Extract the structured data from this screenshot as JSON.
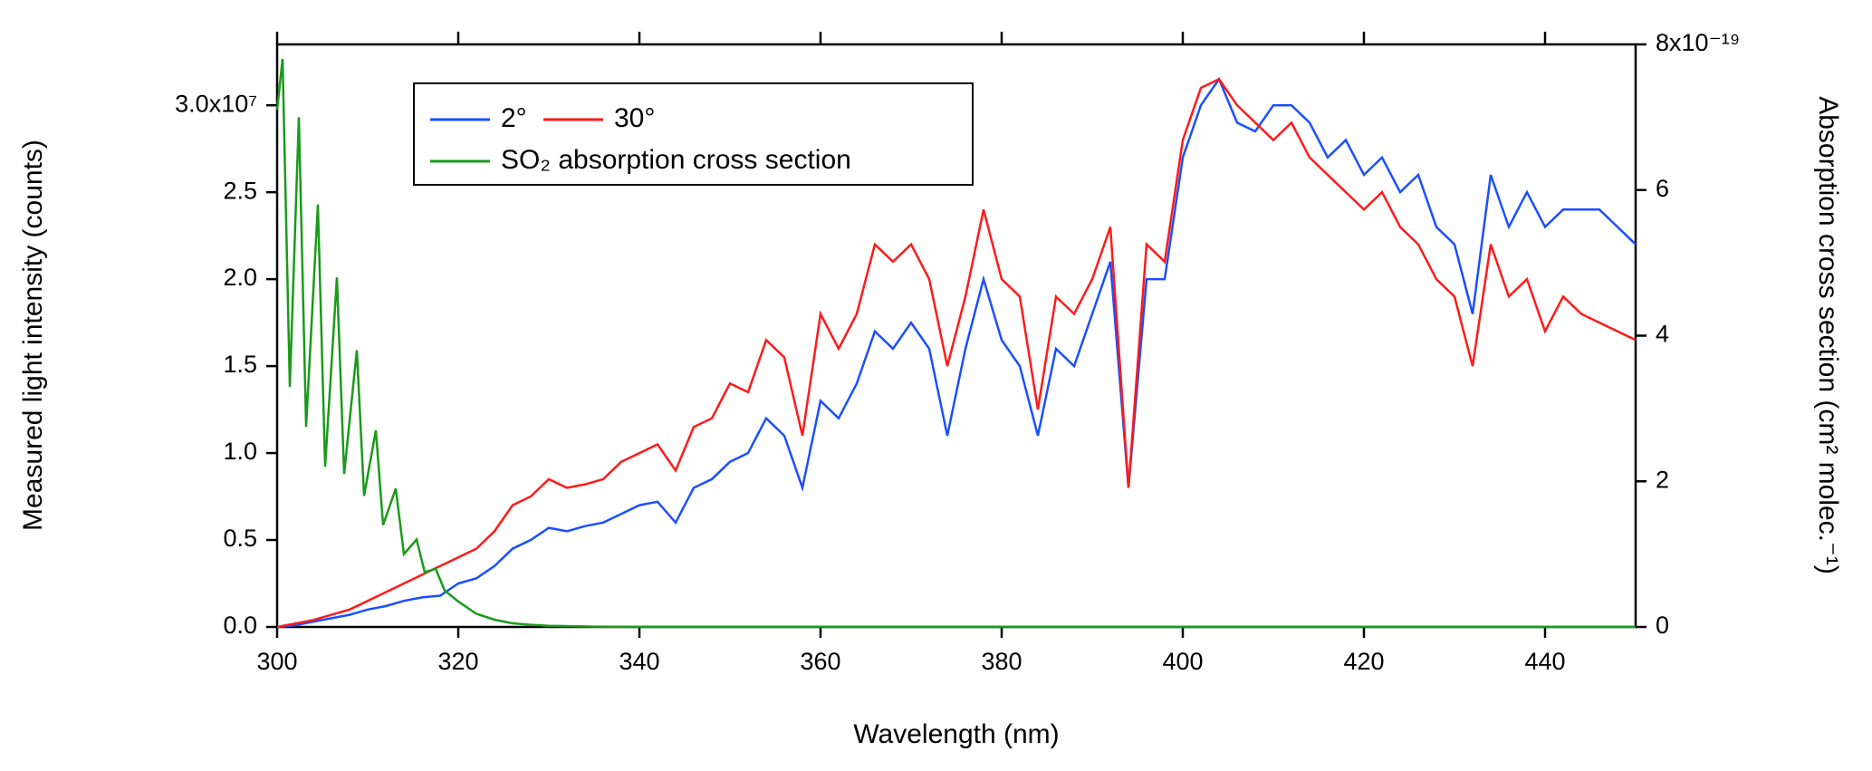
{
  "chart_data": {
    "type": "line",
    "xlabel": "Wavelength (nm)",
    "ylabel": "Measured light intensity (counts)",
    "y2label": "Absorption cross section (cm² molec.⁻¹)",
    "xlim": [
      300,
      450
    ],
    "xticks": [
      300,
      320,
      340,
      360,
      380,
      400,
      420,
      440
    ],
    "ylim": [
      0,
      33500000
    ],
    "yticks": [
      {
        "value": 0,
        "label": "0.0"
      },
      {
        "value": 5000000,
        "label": "0.5"
      },
      {
        "value": 10000000,
        "label": "1.0"
      },
      {
        "value": 15000000,
        "label": "1.5"
      },
      {
        "value": 20000000,
        "label": "2.0"
      },
      {
        "value": 25000000,
        "label": "2.5"
      },
      {
        "value": 30000000,
        "label": "3.0x10⁷"
      }
    ],
    "y2lim": [
      0,
      8e-19
    ],
    "y2ticks": [
      {
        "value": 0,
        "label": "0"
      },
      {
        "value": 2e-19,
        "label": "2"
      },
      {
        "value": 4e-19,
        "label": "4"
      },
      {
        "value": 6e-19,
        "label": "6"
      },
      {
        "value": 8e-19,
        "label": "8x10⁻¹⁹"
      }
    ],
    "legend": "upper left",
    "x": [
      300,
      302,
      304,
      306,
      308,
      310,
      312,
      314,
      316,
      318,
      320,
      322,
      324,
      326,
      328,
      330,
      332,
      334,
      336,
      338,
      340,
      342,
      344,
      346,
      348,
      350,
      352,
      354,
      356,
      358,
      360,
      362,
      364,
      366,
      368,
      370,
      372,
      374,
      376,
      378,
      380,
      382,
      384,
      386,
      388,
      390,
      392,
      394,
      396,
      398,
      400,
      402,
      404,
      406,
      408,
      410,
      412,
      414,
      416,
      418,
      420,
      422,
      424,
      426,
      428,
      430,
      432,
      434,
      436,
      438,
      440,
      442,
      444,
      446,
      448,
      450
    ],
    "series": [
      {
        "name": "2°",
        "color": "#1a4fff",
        "values": [
          0,
          100000,
          300000,
          500000,
          700000,
          1000000,
          1200000,
          1500000,
          1700000,
          1800000,
          2500000,
          2800000,
          3500000,
          4500000,
          5000000,
          5700000,
          5500000,
          5800000,
          6000000,
          6500000,
          7000000,
          7200000,
          6000000,
          8000000,
          8500000,
          9500000,
          10000000,
          12000000,
          11000000,
          8000000,
          13000000,
          12000000,
          14000000,
          17000000,
          16000000,
          17500000,
          16000000,
          11000000,
          16000000,
          20000000,
          16500000,
          15000000,
          11000000,
          16000000,
          15000000,
          18000000,
          21000000,
          8000000,
          20000000,
          20000000,
          27000000,
          30000000,
          31500000,
          29000000,
          28500000,
          30000000,
          30000000,
          29000000,
          27000000,
          28000000,
          26000000,
          27000000,
          25000000,
          26000000,
          23000000,
          22000000,
          18000000,
          26000000,
          23000000,
          25000000,
          23000000,
          24000000,
          24000000,
          24000000,
          23000000,
          22000000
        ]
      },
      {
        "name": "30°",
        "color": "#ff1a1a",
        "values": [
          0,
          200000,
          400000,
          700000,
          1000000,
          1500000,
          2000000,
          2500000,
          3000000,
          3500000,
          4000000,
          4500000,
          5500000,
          7000000,
          7500000,
          8500000,
          8000000,
          8200000,
          8500000,
          9500000,
          10000000,
          10500000,
          9000000,
          11500000,
          12000000,
          14000000,
          13500000,
          16500000,
          15500000,
          11000000,
          18000000,
          16000000,
          18000000,
          22000000,
          21000000,
          22000000,
          20000000,
          15000000,
          19000000,
          24000000,
          20000000,
          19000000,
          12500000,
          19000000,
          18000000,
          20000000,
          23000000,
          8000000,
          22000000,
          21000000,
          28000000,
          31000000,
          31500000,
          30000000,
          29000000,
          28000000,
          29000000,
          27000000,
          26000000,
          25000000,
          24000000,
          25000000,
          23000000,
          22000000,
          20000000,
          19000000,
          15000000,
          22000000,
          19000000,
          20000000,
          17000000,
          19000000,
          18000000,
          17500000,
          17000000,
          16500000
        ]
      },
      {
        "name": "SO₂ absorption cross section",
        "color": "#1a9a1a",
        "axis": "y2",
        "x": [
          300,
          300.6,
          301.4,
          302.4,
          303.2,
          304.5,
          305.3,
          306.6,
          307.4,
          308.8,
          309.6,
          310.9,
          311.7,
          313.1,
          314,
          315.4,
          316.3,
          317.5,
          318.5,
          320,
          322,
          324,
          326,
          328,
          330,
          335,
          340,
          450
        ],
        "values": [
          7.1e-19,
          7.8e-19,
          3.3e-19,
          7e-19,
          2.75e-19,
          5.8e-19,
          2.2e-19,
          4.8e-19,
          2.1e-19,
          3.8e-19,
          1.8e-19,
          2.7e-19,
          1.4e-19,
          1.9e-19,
          1e-19,
          1.2e-19,
          7.5e-20,
          8e-20,
          5e-20,
          3.5e-20,
          1.8e-20,
          1e-20,
          5e-21,
          3e-21,
          1.5e-21,
          5e-22,
          0,
          0
        ]
      }
    ]
  }
}
